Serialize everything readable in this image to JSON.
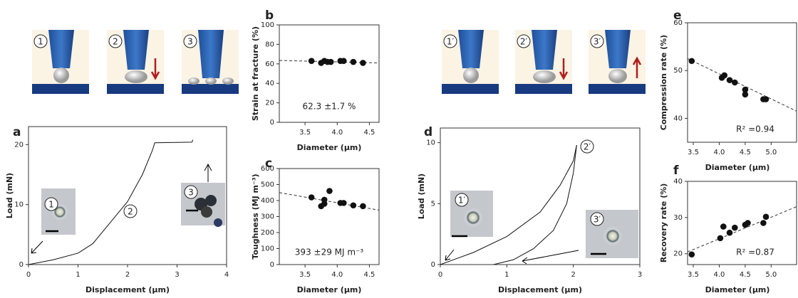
{
  "chart_data": [
    {
      "type": "line",
      "panel": "a",
      "xlabel": "Displacement (μm)",
      "ylabel": "Load (mN)",
      "xlim": [
        0,
        4
      ],
      "ylim": [
        0,
        23
      ],
      "xticks": [
        0,
        1,
        2,
        3,
        4
      ],
      "yticks": [
        0,
        10,
        20
      ],
      "series": [
        {
          "color": "#111111",
          "x": [
            0,
            0.5,
            1,
            1.3,
            1.6,
            2,
            2.3,
            2.5,
            2.55,
            3.3,
            3.32
          ],
          "values": [
            0,
            0.8,
            1.9,
            3.5,
            6.5,
            10.5,
            15,
            19,
            20.3,
            20.4,
            20.8
          ]
        }
      ],
      "annotations": [
        "1",
        "2",
        "3"
      ],
      "schematic_labels": [
        "1",
        "2",
        "3"
      ]
    },
    {
      "type": "scatter",
      "panel": "b",
      "xlabel": "Diameter (μm)",
      "ylabel": "Strain at fracture (%)",
      "xlim": [
        3.1,
        4.65
      ],
      "ylim": [
        0,
        100
      ],
      "xticks": [
        3.5,
        {
          "value": 4,
          "label": "4.0"
        },
        4.5
      ],
      "yticks": [
        0,
        20,
        40,
        60,
        80,
        100
      ],
      "color": "#111111",
      "x": [
        3.6,
        3.75,
        3.8,
        3.85,
        3.9,
        4.05,
        4.1,
        4.25,
        4.4
      ],
      "values": [
        63,
        61,
        63,
        62,
        62,
        63,
        63,
        62,
        61
      ],
      "fit": {
        "x": [
          3.1,
          4.65
        ],
        "values": [
          63.5,
          61
        ]
      },
      "annotations": [
        "62.3  ±1.7 %"
      ]
    },
    {
      "type": "scatter",
      "panel": "c",
      "xlabel": "Diameter (μm)",
      "ylabel": "Toughness (MJ m⁻³)",
      "xlim": [
        3.1,
        4.65
      ],
      "ylim": [
        0,
        600
      ],
      "xticks": [
        3.5,
        {
          "value": 4,
          "label": "4.0"
        },
        4.5
      ],
      "yticks": [
        0,
        100,
        200,
        300,
        400,
        500,
        600
      ],
      "color": "#111111",
      "x": [
        3.6,
        3.75,
        3.8,
        3.8,
        3.88,
        4.05,
        4.1,
        4.25,
        4.4
      ],
      "values": [
        420,
        365,
        380,
        405,
        460,
        385,
        385,
        370,
        365
      ],
      "fit": {
        "x": [
          3.1,
          4.65
        ],
        "values": [
          450,
          340
        ]
      },
      "annotations": [
        "393  ±29 MJ m⁻³"
      ]
    },
    {
      "type": "line",
      "panel": "d",
      "xlabel": "Displacement (μm)",
      "ylabel": "Load (mN)",
      "xlim": [
        0,
        3
      ],
      "ylim": [
        0,
        11.2
      ],
      "xticks": [
        0,
        1,
        2,
        3
      ],
      "yticks": [
        0,
        5,
        10
      ],
      "series": [
        {
          "color": "#111111",
          "x": [
            0,
            0.5,
            1,
            1.5,
            1.8,
            2,
            2.05
          ],
          "values": [
            0,
            1,
            2.3,
            4.3,
            6.5,
            8.5,
            9.8
          ]
        },
        {
          "color": "#111111",
          "x": [
            2.05,
            2,
            1.9,
            1.7,
            1.4,
            1.1,
            0.8
          ],
          "values": [
            9.8,
            7.5,
            5,
            2.8,
            1.3,
            0.4,
            0
          ]
        }
      ],
      "annotations": [
        "2′",
        "1′",
        "3′"
      ],
      "schematic_labels": [
        "1′",
        "2′",
        "3′"
      ]
    },
    {
      "type": "scatter",
      "panel": "e",
      "xlabel": "Diameter (μm)",
      "ylabel": "Compression rate (%)",
      "xlim": [
        3.39,
        5.49
      ],
      "ylim": [
        35,
        60
      ],
      "xticks": [
        3.5,
        {
          "value": 4,
          "label": "4.0"
        },
        4.5,
        {
          "value": 5,
          "label": "5.0"
        }
      ],
      "yticks": [
        40,
        50,
        60
      ],
      "color": "#111111",
      "x": [
        3.47,
        4.05,
        4.1,
        4.2,
        4.3,
        4.5,
        4.5,
        4.85,
        4.9
      ],
      "values": [
        52,
        48.5,
        49,
        48,
        47.5,
        46,
        45,
        44,
        44
      ],
      "fit": {
        "x": [
          3.39,
          5.49
        ],
        "values": [
          52.5,
          41.5
        ]
      },
      "annotations": [
        "R² =0.94"
      ]
    },
    {
      "type": "scatter",
      "panel": "f",
      "xlabel": "Diameter (μm)",
      "ylabel": "Recovery rate (%)",
      "xlim": [
        3.39,
        5.49
      ],
      "ylim": [
        17,
        40
      ],
      "xticks": [
        3.5,
        {
          "value": 4,
          "label": "4.0"
        },
        4.5,
        {
          "value": 5,
          "label": "5.0"
        }
      ],
      "yticks": [
        20,
        30,
        40
      ],
      "color": "#111111",
      "x": [
        3.47,
        4.02,
        4.08,
        4.2,
        4.3,
        4.5,
        4.55,
        4.85,
        4.9
      ],
      "values": [
        19.8,
        24.3,
        27.5,
        25.8,
        27.2,
        28,
        28.5,
        28.5,
        30.2
      ],
      "fit": {
        "x": [
          3.39,
          5.49
        ],
        "values": [
          20.5,
          33
        ]
      },
      "annotations": [
        "R² =0.87"
      ]
    }
  ]
}
